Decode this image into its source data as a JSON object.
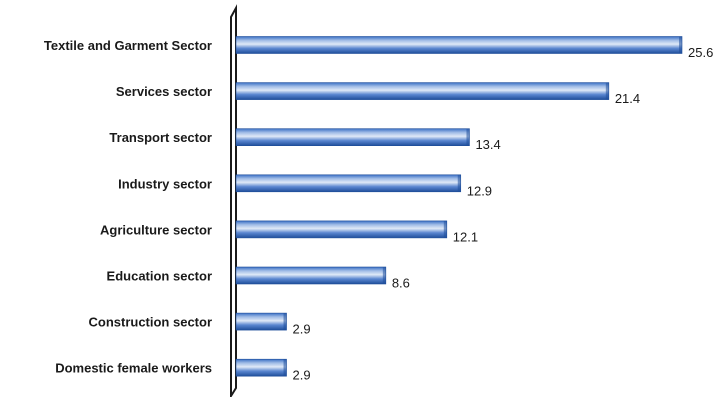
{
  "chart_data": {
    "type": "bar",
    "orientation": "horizontal",
    "categories": [
      "Textile and Garment Sector",
      "Services sector",
      "Transport sector",
      "Industry sector",
      "Agriculture sector",
      "Education sector",
      "Construction sector",
      "Domestic female  workers"
    ],
    "values": [
      25.6,
      21.4,
      13.4,
      12.9,
      12.1,
      8.6,
      2.9,
      2.9
    ],
    "value_labels": [
      "25.6",
      "21.4",
      "13.4",
      "12.9",
      "12.1",
      "8.6",
      "2.9",
      "2.9"
    ],
    "title": "",
    "xlabel": "",
    "ylabel": "",
    "xlim": [
      0,
      25.6
    ],
    "grid": false,
    "legend": "none",
    "colors": {
      "bar_dark": "#1f4e9a",
      "bar_mid": "#3a6fc4",
      "bar_light": "#dfe9f7",
      "axis": "#1a1a1a"
    }
  }
}
